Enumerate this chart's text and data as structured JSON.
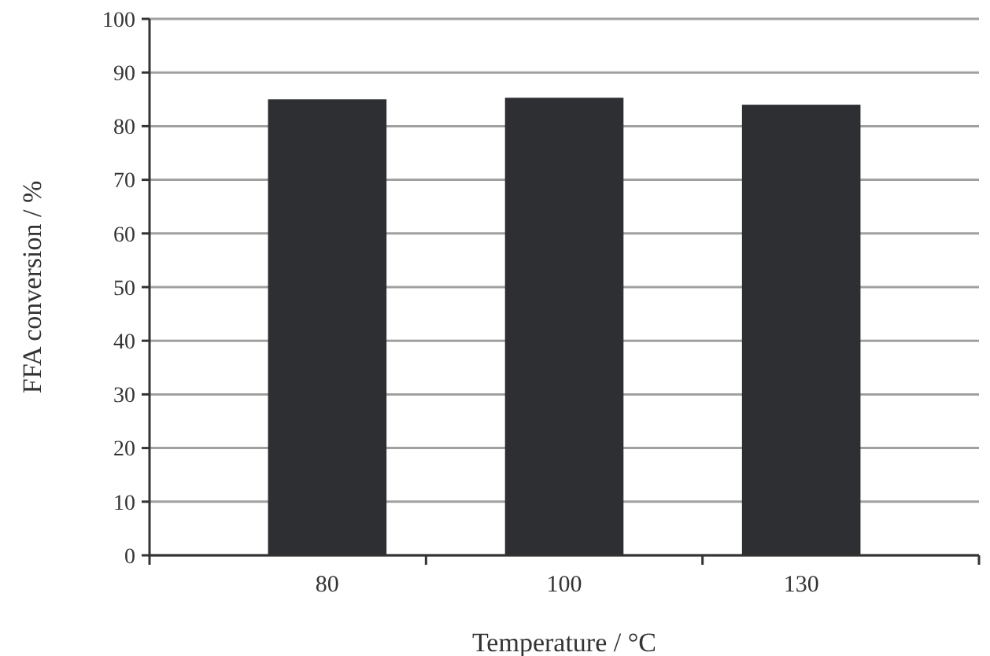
{
  "chart_data": {
    "type": "bar",
    "xlabel": "Temperature / °C",
    "ylabel": "FFA conversion / %",
    "categories": [
      "80",
      "100",
      "130"
    ],
    "values": [
      85,
      85.3,
      84
    ],
    "color": "#2e2f33",
    "ylim": [
      0,
      100
    ],
    "yticks": [
      0,
      10,
      20,
      30,
      40,
      50,
      60,
      70,
      80,
      90,
      100
    ],
    "grid": "y"
  }
}
